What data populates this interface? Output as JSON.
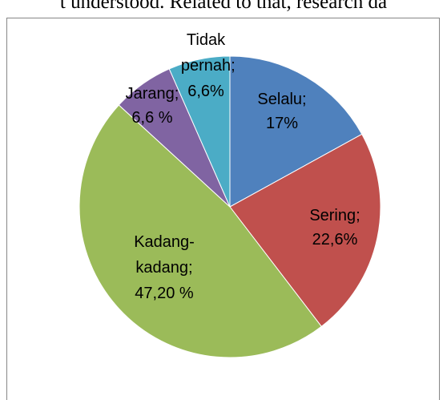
{
  "page_text": "t understood. Related to that, research da",
  "chart_data": {
    "type": "pie",
    "categories": [
      "Selalu;",
      "Sering;",
      "Kadang-kadang;",
      "Jarang;",
      "Tidak pernah;"
    ],
    "values": [
      17,
      22.6,
      47.2,
      6.6,
      6.6
    ],
    "value_labels": [
      "17%",
      "22,6%",
      "47,20 %",
      "6,6 %",
      "6,6%"
    ],
    "colors": [
      "#4f81bd",
      "#c0504d",
      "#9bbb59",
      "#8064a2",
      "#4bacc6"
    ]
  }
}
